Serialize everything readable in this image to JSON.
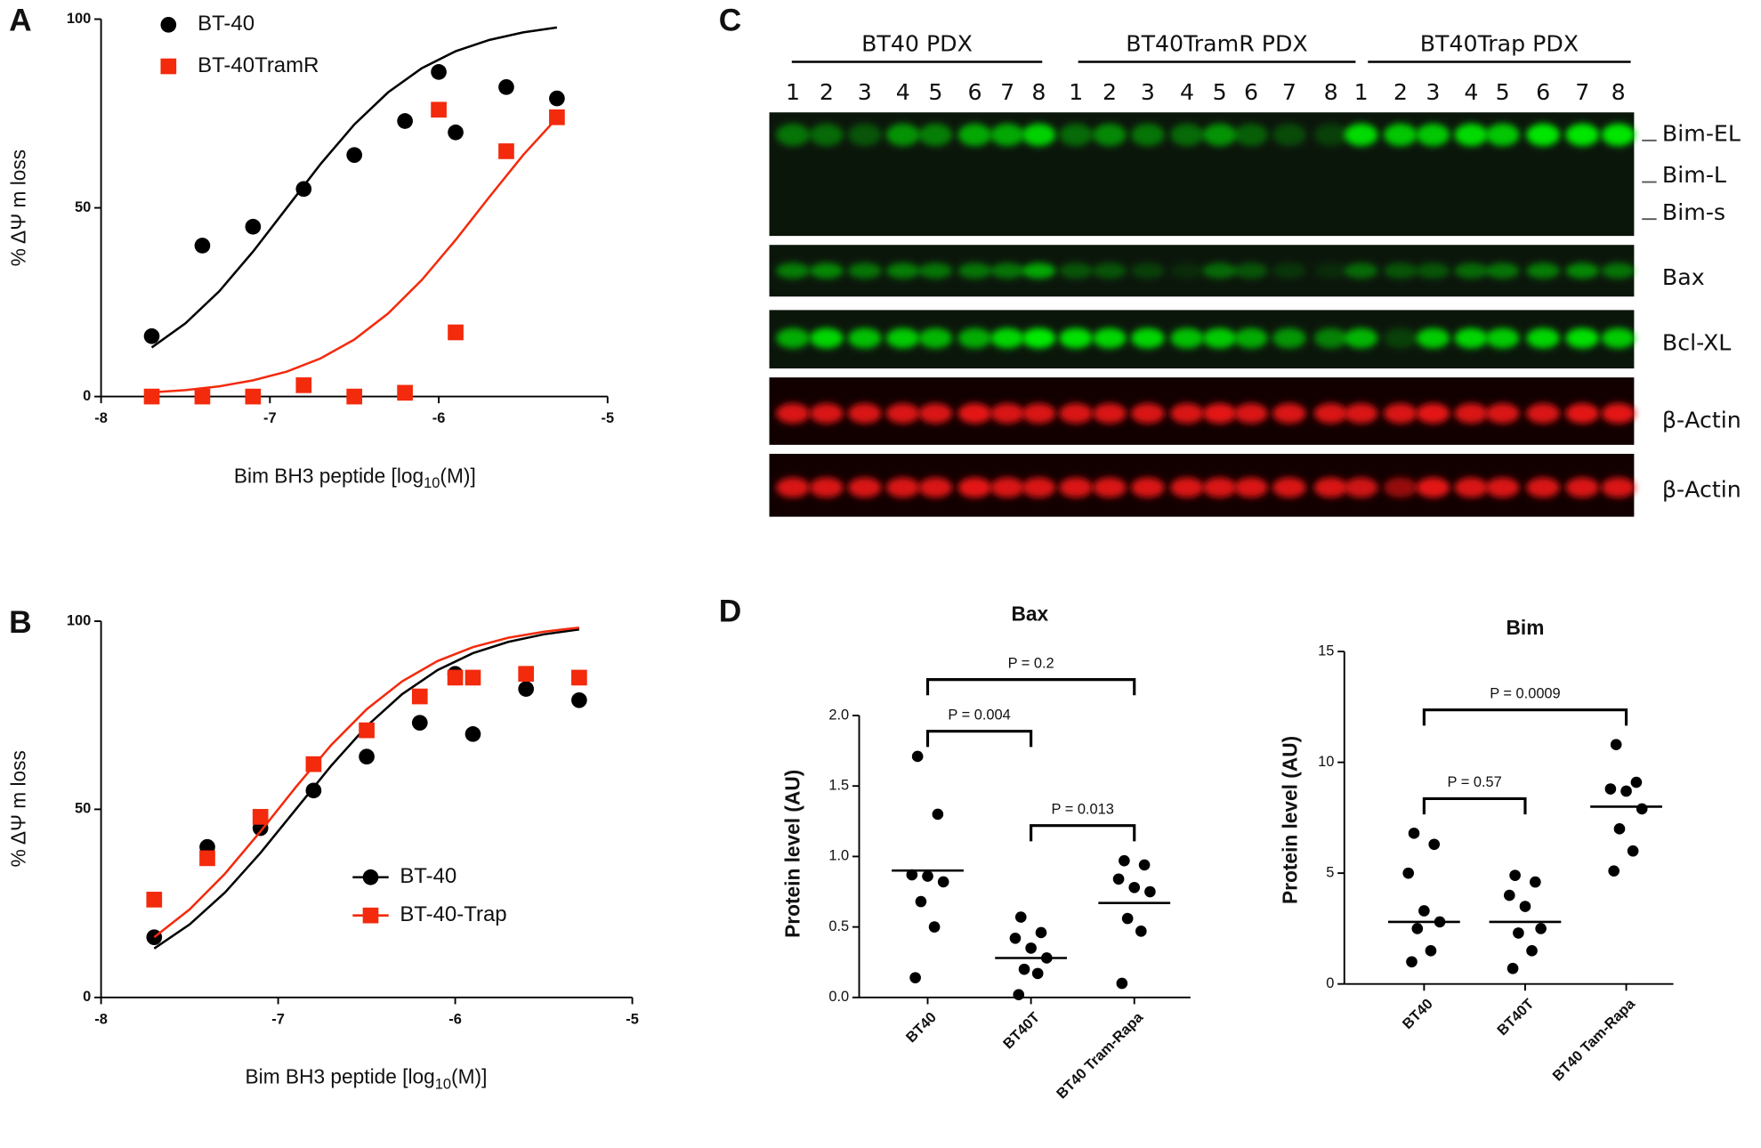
{
  "chart_data": [
    {
      "type": "scatter",
      "panel_label": "A",
      "ylabel": "% ΔΨ m loss",
      "xlabel": [
        "Bim BH3 peptide [log",
        "10",
        "(M)]"
      ],
      "xlim": [
        -8,
        -5
      ],
      "xticks": [
        -8,
        -7,
        -6,
        -5
      ],
      "ylim": [
        0,
        100
      ],
      "yticks": [
        0,
        50,
        100
      ],
      "legend_line": false,
      "x": [
        -7.7,
        -7.4,
        -7.1,
        -6.8,
        -6.5,
        -6.2,
        -6.0,
        -5.9,
        -5.6,
        -5.3
      ],
      "series": [
        {
          "name": "BT-40",
          "color": "#000000",
          "marker": "circle",
          "values": [
            16,
            40,
            45,
            55,
            64,
            73,
            86,
            70,
            82,
            79
          ],
          "curve": {
            "x": [
              -7.7,
              -7.5,
              -7.3,
              -7.1,
              -6.9,
              -6.7,
              -6.5,
              -6.3,
              -6.1,
              -5.9,
              -5.7,
              -5.5,
              -5.3
            ],
            "values": [
              13.0,
              19.4,
              27.9,
              38.4,
              50,
              61.6,
              72.1,
              80.6,
              87.0,
              91.5,
              94.5,
              96.5,
              97.8
            ]
          }
        },
        {
          "name": "BT-40TramR",
          "color": "#f32a0c",
          "marker": "square",
          "values": [
            0,
            0,
            0,
            3,
            0,
            1,
            76,
            17,
            65,
            74
          ],
          "curve": {
            "x": [
              -7.7,
              -7.5,
              -7.3,
              -7.1,
              -6.9,
              -6.7,
              -6.5,
              -6.3,
              -6.1,
              -5.9,
              -5.7,
              -5.5,
              -5.3
            ],
            "values": [
              1.1,
              1.7,
              2.7,
              4.3,
              6.6,
              10.1,
              15.1,
              22.0,
              30.9,
              41.5,
              52.9,
              64.0,
              73.8
            ]
          }
        }
      ]
    },
    {
      "type": "scatter",
      "panel_label": "B",
      "ylabel": "% ΔΨ m loss",
      "xlabel": [
        "Bim BH3 peptide [log",
        "10",
        "(M)]"
      ],
      "xlim": [
        -8,
        -5
      ],
      "xticks": [
        -8,
        -7,
        -6,
        -5
      ],
      "ylim": [
        0,
        100
      ],
      "yticks": [
        0,
        50,
        100
      ],
      "legend_line": true,
      "x": [
        -7.7,
        -7.4,
        -7.1,
        -6.8,
        -6.5,
        -6.2,
        -6.0,
        -5.9,
        -5.6,
        -5.3
      ],
      "series": [
        {
          "name": "BT-40",
          "color": "#000000",
          "marker": "circle",
          "values": [
            16,
            40,
            45,
            55,
            64,
            73,
            86,
            70,
            82,
            79
          ],
          "curve": {
            "x": [
              -7.7,
              -7.5,
              -7.3,
              -7.1,
              -6.9,
              -6.7,
              -6.5,
              -6.3,
              -6.1,
              -5.9,
              -5.7,
              -5.5,
              -5.3
            ],
            "values": [
              13.0,
              19.4,
              27.9,
              38.4,
              50,
              61.6,
              72.1,
              80.6,
              87.0,
              91.5,
              94.5,
              96.5,
              97.8
            ]
          }
        },
        {
          "name": "BT-40-Trap",
          "color": "#f32a0c",
          "marker": "square",
          "values": [
            26,
            37,
            48,
            62,
            71,
            80,
            85,
            85,
            86,
            85
          ],
          "curve": {
            "x": [
              -7.7,
              -7.5,
              -7.3,
              -7.1,
              -6.9,
              -6.7,
              -6.5,
              -6.3,
              -6.1,
              -5.9,
              -5.7,
              -5.5,
              -5.3
            ],
            "values": [
              16.0,
              23.4,
              32.9,
              44.1,
              55.9,
              67.1,
              76.6,
              84.0,
              89.4,
              93.1,
              95.6,
              97.2,
              98.3
            ]
          }
        }
      ]
    },
    {
      "type": "dot",
      "panel_label": "D",
      "title": "Bax",
      "ylabel": "Protein level (AU)",
      "categories": [
        "BT40",
        "BT40T",
        "BT40 Tram-Rapa"
      ],
      "values": [
        [
          1.71,
          1.3,
          0.87,
          0.86,
          0.82,
          0.68,
          0.5,
          0.14
        ],
        [
          0.57,
          0.46,
          0.42,
          0.35,
          0.28,
          0.2,
          0.17,
          0.02
        ],
        [
          0.97,
          0.94,
          0.84,
          0.78,
          0.75,
          0.56,
          0.47,
          0.1
        ]
      ],
      "center_values": [
        0.9,
        0.28,
        0.67
      ],
      "ylim": [
        0,
        2.0
      ],
      "yticks": [
        {
          "value": 0,
          "label": "0.0"
        },
        0.5,
        {
          "value": 1,
          "label": "1.0"
        },
        1.5,
        {
          "value": 2,
          "label": "2.0"
        }
      ],
      "comparisons": [
        {
          "from": 0,
          "to": 2,
          "label": "P = 0.2"
        },
        {
          "from": 0,
          "to": 1,
          "label": "P = 0.004"
        },
        {
          "from": 1,
          "to": 2,
          "label": "P = 0.013"
        }
      ]
    },
    {
      "type": "dot",
      "title": "Bim",
      "ylabel": "Protein level (AU)",
      "categories": [
        "BT40",
        "BT40T",
        "BT40 Tam-Rapa"
      ],
      "values": [
        [
          6.8,
          6.3,
          5.0,
          3.3,
          2.8,
          2.5,
          1.5,
          1.0
        ],
        [
          4.9,
          4.6,
          4.0,
          3.5,
          2.5,
          2.3,
          1.5,
          0.7
        ],
        [
          10.8,
          9.1,
          8.8,
          8.7,
          7.9,
          7.0,
          6.0,
          5.1
        ]
      ],
      "center_values": [
        2.8,
        2.8,
        8.0
      ],
      "ylim": [
        0,
        15
      ],
      "yticks": [
        0,
        5,
        10,
        15
      ],
      "comparisons": [
        {
          "from": 0,
          "to": 2,
          "label": "P = 0.0009"
        },
        {
          "from": 0,
          "to": 1,
          "label": "P = 0.57"
        }
      ]
    }
  ],
  "blot": {
    "panel_label": "C",
    "groups": [
      "BT40 PDX",
      "BT40TramR PDX",
      "BT40Trap PDX"
    ],
    "lanes": [
      "1",
      "2",
      "3",
      "4",
      "5",
      "6",
      "7",
      "8"
    ],
    "bands": [
      "Bim-EL",
      "Bim-L",
      "Bim-s",
      "Bax",
      "Bcl-XL",
      "β-Actin",
      "β-Actin"
    ]
  }
}
